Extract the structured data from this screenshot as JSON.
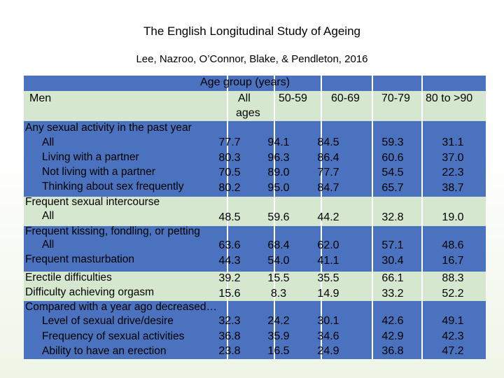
{
  "title": "The English Longitudinal Study of Ageing",
  "subtitle": "Lee, Nazroo, O’Connor, Blake, & Pendleton, 2016",
  "table": {
    "group_header": "Age group (years)",
    "row_label_header": "Men",
    "columns": [
      "All",
      "ages",
      "50-59",
      "60-69",
      "70-79",
      "80 to >90"
    ],
    "labels": [
      "Any sexual activity in the past year",
      "All",
      "Living with a partner",
      "Not living with a partner",
      "Thinking about sex frequently",
      "Frequent sexual intercourse",
      "All",
      "Frequent kissing, fondling, or petting",
      "All",
      "Frequent masturbation",
      "Erectile difficulties",
      "Difficulty achieving orgasm",
      "Compared with a year ago decreased…",
      "Level of sexual drive/desire",
      "Frequency of sexual activities",
      "Ability to have an erection"
    ],
    "blocks": [
      [
        "77.7",
        "80.3",
        "70.5",
        "80.2"
      ],
      [
        "94.1",
        "96.3",
        "89.0",
        "95.0"
      ],
      [
        "84.5",
        "86.4",
        "77.7",
        "84.7"
      ],
      [
        "59.3",
        "60.6",
        "54.5",
        "65.7"
      ],
      [
        "31.1",
        "37.0",
        "22.3",
        "38.7"
      ],
      [
        "48.5"
      ],
      [
        "59.6"
      ],
      [
        "44.2"
      ],
      [
        "32.8"
      ],
      [
        "19.0"
      ],
      [
        "63.6",
        "44.3"
      ],
      [
        "68.4",
        "54.0"
      ],
      [
        "62.0",
        "41.1"
      ],
      [
        "57.1",
        "30.4"
      ],
      [
        "48.6",
        "16.7"
      ],
      [
        "39.2",
        "15.6"
      ],
      [
        "15.5",
        "8.3"
      ],
      [
        "35.5",
        "14.9"
      ],
      [
        "66.1",
        "33.2"
      ],
      [
        "88.3",
        "52.2"
      ],
      [
        "32.3",
        "36.8",
        "23.8"
      ],
      [
        "24.2",
        "35.9",
        "16.5"
      ],
      [
        "30.1",
        "34.6",
        "24.9"
      ],
      [
        "42.6",
        "42.9",
        "36.8"
      ],
      [
        "49.1",
        "42.3",
        "47.2"
      ]
    ]
  }
}
